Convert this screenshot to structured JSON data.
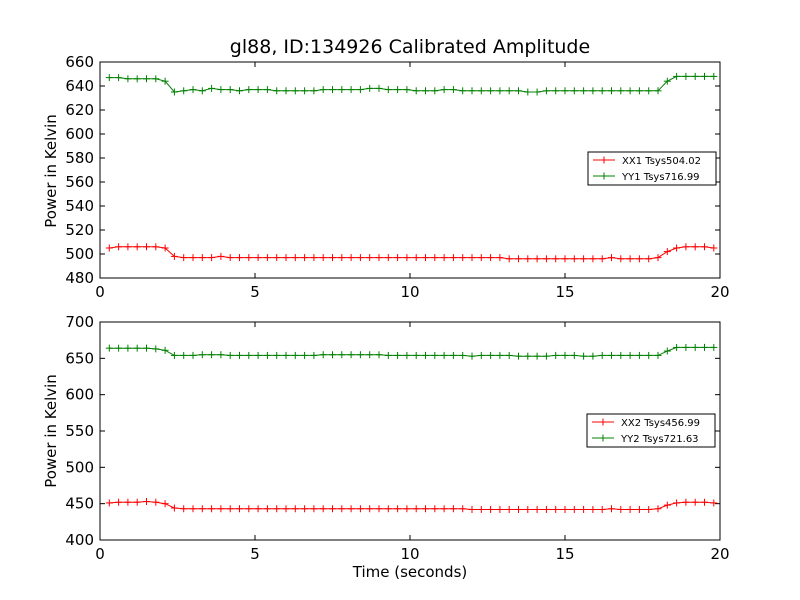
{
  "chart_data": [
    {
      "type": "line",
      "title": "gl88, ID:134926 Calibrated Amplitude",
      "xlabel": "",
      "ylabel": "Power in Kelvin",
      "xlim": [
        0,
        20
      ],
      "ylim": [
        480,
        660
      ],
      "xticks": [
        "0",
        "5",
        "10",
        "15",
        "20"
      ],
      "yticks": [
        "480",
        "500",
        "520",
        "540",
        "560",
        "580",
        "600",
        "620",
        "640",
        "660"
      ],
      "grid": false,
      "legend_position": "right",
      "x": [
        0.3,
        0.6,
        0.9,
        1.2,
        1.5,
        1.8,
        2.1,
        2.4,
        2.7,
        3.0,
        3.3,
        3.6,
        3.9,
        4.2,
        4.5,
        4.8,
        5.1,
        5.4,
        5.7,
        6.0,
        6.3,
        6.6,
        6.9,
        7.2,
        7.5,
        7.8,
        8.1,
        8.4,
        8.7,
        9.0,
        9.3,
        9.6,
        9.9,
        10.2,
        10.5,
        10.8,
        11.1,
        11.4,
        11.7,
        12.0,
        12.3,
        12.6,
        12.9,
        13.2,
        13.5,
        13.8,
        14.1,
        14.4,
        14.7,
        15.0,
        15.3,
        15.6,
        15.9,
        16.2,
        16.5,
        16.8,
        17.1,
        17.4,
        17.7,
        18.0,
        18.3,
        18.6,
        18.9,
        19.2,
        19.5,
        19.8
      ],
      "series": [
        {
          "name": "XX1 Tsys504.02",
          "color": "#ff0000",
          "values": [
            505,
            506,
            506,
            506,
            506,
            506,
            505,
            498,
            497,
            497,
            497,
            497,
            498,
            497,
            497,
            497,
            497,
            497,
            497,
            497,
            497,
            497,
            497,
            497,
            497,
            497,
            497,
            497,
            497,
            497,
            497,
            497,
            497,
            497,
            497,
            497,
            497,
            497,
            497,
            497,
            497,
            497,
            497,
            496,
            496,
            496,
            496,
            496,
            496,
            496,
            496,
            496,
            496,
            496,
            497,
            496,
            496,
            496,
            496,
            497,
            502,
            505,
            506,
            506,
            506,
            505
          ]
        },
        {
          "name": "YY1 Tsys716.99",
          "color": "#008000",
          "values": [
            647,
            647,
            646,
            646,
            646,
            646,
            644,
            635,
            636,
            637,
            636,
            638,
            637,
            637,
            636,
            637,
            637,
            637,
            636,
            636,
            636,
            636,
            636,
            637,
            637,
            637,
            637,
            637,
            638,
            638,
            637,
            637,
            637,
            636,
            636,
            636,
            637,
            637,
            636,
            636,
            636,
            636,
            636,
            636,
            636,
            635,
            635,
            636,
            636,
            636,
            636,
            636,
            636,
            636,
            636,
            636,
            636,
            636,
            636,
            636,
            644,
            648,
            648,
            648,
            648,
            648
          ]
        }
      ]
    },
    {
      "type": "line",
      "title": "",
      "xlabel": "Time (seconds)",
      "ylabel": "Power in Kelvin",
      "xlim": [
        0,
        20
      ],
      "ylim": [
        400,
        700
      ],
      "xticks": [
        "0",
        "5",
        "10",
        "15",
        "20"
      ],
      "yticks": [
        "400",
        "450",
        "500",
        "550",
        "600",
        "650",
        "700"
      ],
      "grid": false,
      "legend_position": "right",
      "x": [
        0.3,
        0.6,
        0.9,
        1.2,
        1.5,
        1.8,
        2.1,
        2.4,
        2.7,
        3.0,
        3.3,
        3.6,
        3.9,
        4.2,
        4.5,
        4.8,
        5.1,
        5.4,
        5.7,
        6.0,
        6.3,
        6.6,
        6.9,
        7.2,
        7.5,
        7.8,
        8.1,
        8.4,
        8.7,
        9.0,
        9.3,
        9.6,
        9.9,
        10.2,
        10.5,
        10.8,
        11.1,
        11.4,
        11.7,
        12.0,
        12.3,
        12.6,
        12.9,
        13.2,
        13.5,
        13.8,
        14.1,
        14.4,
        14.7,
        15.0,
        15.3,
        15.6,
        15.9,
        16.2,
        16.5,
        16.8,
        17.1,
        17.4,
        17.7,
        18.0,
        18.3,
        18.6,
        18.9,
        19.2,
        19.5,
        19.8
      ],
      "series": [
        {
          "name": "XX2 Tsys456.99",
          "color": "#ff0000",
          "values": [
            451,
            452,
            452,
            452,
            453,
            452,
            450,
            444,
            443,
            443,
            443,
            443,
            443,
            443,
            443,
            443,
            443,
            443,
            443,
            443,
            443,
            443,
            443,
            443,
            443,
            443,
            443,
            443,
            443,
            443,
            443,
            443,
            443,
            443,
            443,
            443,
            443,
            443,
            443,
            442,
            442,
            442,
            442,
            442,
            442,
            442,
            442,
            442,
            442,
            442,
            442,
            442,
            442,
            442,
            443,
            442,
            442,
            442,
            442,
            443,
            448,
            451,
            452,
            452,
            452,
            451
          ]
        },
        {
          "name": "YY2 Tsys721.63",
          "color": "#008000",
          "values": [
            664,
            664,
            664,
            664,
            664,
            663,
            661,
            654,
            654,
            654,
            655,
            655,
            655,
            654,
            654,
            654,
            654,
            654,
            654,
            654,
            654,
            654,
            654,
            655,
            655,
            655,
            655,
            655,
            655,
            655,
            654,
            654,
            654,
            654,
            654,
            654,
            654,
            654,
            654,
            653,
            654,
            654,
            654,
            654,
            653,
            653,
            653,
            653,
            654,
            654,
            654,
            653,
            653,
            654,
            654,
            654,
            654,
            654,
            654,
            654,
            660,
            665,
            665,
            665,
            665,
            665
          ]
        }
      ]
    }
  ]
}
